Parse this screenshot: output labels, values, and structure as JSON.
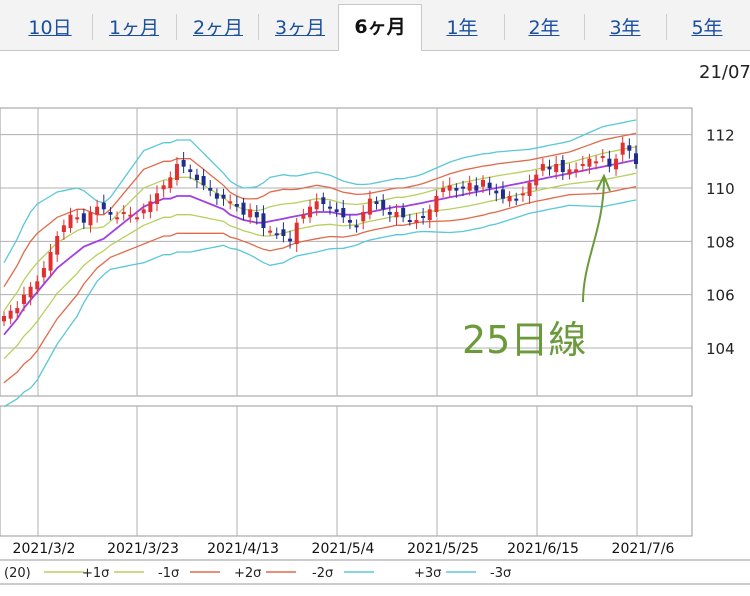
{
  "tabs": [
    {
      "label": "10日",
      "active": false
    },
    {
      "label": "1ヶ月",
      "active": false
    },
    {
      "label": "2ヶ月",
      "active": false
    },
    {
      "label": "3ヶ月",
      "active": false
    },
    {
      "label": "6ヶ月",
      "active": true
    },
    {
      "label": "1年",
      "active": false
    },
    {
      "label": "2年",
      "active": false
    },
    {
      "label": "3年",
      "active": false
    },
    {
      "label": "5年",
      "active": false
    }
  ],
  "header_date": "21/07",
  "annotation": {
    "text": "25日線",
    "color": "#6a9a3a"
  },
  "colors": {
    "up": "#e03030",
    "down": "#1f2d8c",
    "ma": "#a040e0",
    "sigma1": "#b8d060",
    "sigma2": "#e06a4a",
    "sigma3": "#5ac8d8",
    "grid": "#b0b0b0"
  },
  "chart_data": {
    "type": "candlestick",
    "x_tick_labels": [
      "2021/3/2",
      "2021/3/23",
      "2021/4/13",
      "2021/5/4",
      "2021/5/25",
      "2021/6/15",
      "2021/7/6"
    ],
    "y_ticks": [
      104,
      106,
      108,
      110,
      112
    ],
    "ylim": [
      102.2,
      113.0
    ],
    "close": [
      105.2,
      105.4,
      105.5,
      106.0,
      106.3,
      106.5,
      107.0,
      107.6,
      108.2,
      108.6,
      109.0,
      108.9,
      108.7,
      109.1,
      109.3,
      109.2,
      109.0,
      108.9,
      109.1,
      109.0,
      108.9,
      109.2,
      109.5,
      109.8,
      110.1,
      110.4,
      110.9,
      110.8,
      110.6,
      110.3,
      110.1,
      109.9,
      109.6,
      109.6,
      109.5,
      109.3,
      109.0,
      109.2,
      108.9,
      108.5,
      108.4,
      108.3,
      108.2,
      108.0,
      108.7,
      109.0,
      109.3,
      109.5,
      109.4,
      109.3,
      109.1,
      108.9,
      108.7,
      108.6,
      109.1,
      109.6,
      109.4,
      109.2,
      109.0,
      109.1,
      108.9,
      108.8,
      108.8,
      108.9,
      109.2,
      109.7,
      110.0,
      110.1,
      109.9,
      110.0,
      110.2,
      109.9,
      110.3,
      110.0,
      109.8,
      109.6,
      109.7,
      109.6,
      109.8,
      110.2,
      110.5,
      110.9,
      110.7,
      110.9,
      110.6,
      110.7,
      110.7,
      110.9,
      111.1,
      111.0,
      111.2,
      110.8,
      111.1,
      111.7,
      111.4,
      110.9
    ],
    "ma_25": [
      104.5,
      104.8,
      105.1,
      105.5,
      105.8,
      106.1,
      106.4,
      106.7,
      107.0,
      107.2,
      107.4,
      107.6,
      107.8,
      107.9,
      108.0,
      108.1,
      108.3,
      108.5,
      108.7,
      108.9,
      109.1,
      109.3,
      109.4,
      109.5,
      109.6,
      109.6,
      109.7,
      109.7,
      109.7,
      109.6,
      109.5,
      109.4,
      109.3,
      109.2,
      109.0,
      108.9,
      108.8,
      108.75,
      108.7,
      108.7,
      108.75,
      108.8,
      108.85,
      108.9,
      108.95,
      109.0,
      109.05,
      109.1,
      109.1,
      109.1,
      109.05,
      109.0,
      109.0,
      109.0,
      109.05,
      109.1,
      109.15,
      109.2,
      109.25,
      109.3,
      109.3,
      109.35,
      109.4,
      109.45,
      109.5,
      109.55,
      109.6,
      109.65,
      109.7,
      109.75,
      109.8,
      109.85,
      109.9,
      109.95,
      110.0,
      110.05,
      110.1,
      110.15,
      110.2,
      110.25,
      110.3,
      110.35,
      110.4,
      110.45,
      110.5,
      110.55,
      110.6,
      110.65,
      110.7,
      110.75,
      110.8,
      110.85,
      110.9,
      110.95,
      111.0,
      111.05
    ],
    "sigma": [
      0.9,
      0.95,
      1.0,
      1.05,
      1.1,
      1.1,
      1.05,
      1.0,
      0.95,
      0.9,
      0.85,
      0.8,
      0.7,
      0.6,
      0.5,
      0.45,
      0.45,
      0.5,
      0.55,
      0.6,
      0.65,
      0.7,
      0.7,
      0.7,
      0.7,
      0.7,
      0.7,
      0.7,
      0.7,
      0.65,
      0.6,
      0.55,
      0.5,
      0.45,
      0.42,
      0.4,
      0.4,
      0.42,
      0.45,
      0.5,
      0.55,
      0.55,
      0.55,
      0.52,
      0.5,
      0.5,
      0.5,
      0.5,
      0.48,
      0.46,
      0.44,
      0.42,
      0.4,
      0.38,
      0.36,
      0.35,
      0.35,
      0.35,
      0.35,
      0.35,
      0.35,
      0.35,
      0.35,
      0.36,
      0.38,
      0.4,
      0.42,
      0.44,
      0.45,
      0.46,
      0.46,
      0.46,
      0.46,
      0.45,
      0.45,
      0.44,
      0.43,
      0.42,
      0.41,
      0.4,
      0.4,
      0.4,
      0.4,
      0.4,
      0.4,
      0.4,
      0.42,
      0.44,
      0.46,
      0.48,
      0.5,
      0.5,
      0.5,
      0.5,
      0.5,
      0.5
    ],
    "legend": [
      {
        "label": "(20)",
        "color": "#a040e0"
      },
      {
        "label": "+1σ",
        "color": "#b8d060"
      },
      {
        "label": "-1σ",
        "color": "#b8d060"
      },
      {
        "label": "+2σ",
        "color": "#e06a4a"
      },
      {
        "label": "-2σ",
        "color": "#e06a4a"
      },
      {
        "label": "+3σ",
        "color": "#5ac8d8"
      },
      {
        "label": "-3σ",
        "color": "#5ac8d8"
      }
    ]
  }
}
